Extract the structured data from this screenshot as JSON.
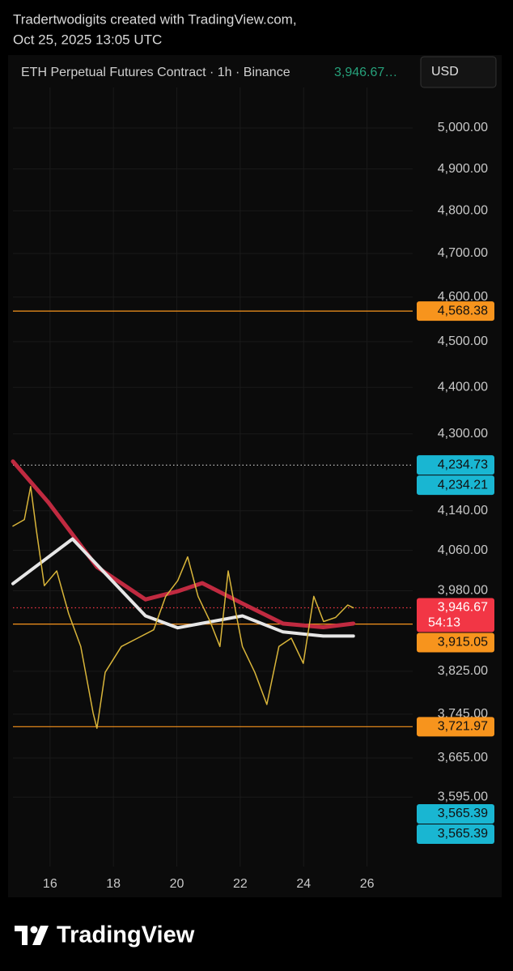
{
  "header": {
    "line1": "Tradertwodigits created with TradingView.com,",
    "line2": "Oct 25, 2025 13:05 UTC"
  },
  "chart_data": {
    "type": "line",
    "title": "ETH Perpetual Futures Contract · 1h · Binance",
    "last_price_label": "3,946.67…",
    "currency": "USD",
    "log_scale": true,
    "grid": true,
    "xlim": [
      14.83,
      27.44
    ],
    "xticks": [
      16,
      18,
      20,
      22,
      24,
      26
    ],
    "ylim": [
      3474,
      5183
    ],
    "yticks": [
      {
        "value": 5000,
        "label": "5,000.00"
      },
      {
        "value": 4900,
        "label": "4,900.00"
      },
      {
        "value": 4800,
        "label": "4,800.00"
      },
      {
        "value": 4700,
        "label": "4,700.00"
      },
      {
        "value": 4600,
        "label": "4,600.00"
      },
      {
        "value": 4500,
        "label": "4,500.00"
      },
      {
        "value": 4400,
        "label": "4,400.00"
      },
      {
        "value": 4300,
        "label": "4,300.00"
      },
      {
        "value": 4140,
        "label": "4,140.00"
      },
      {
        "value": 4060,
        "label": "4,060.00"
      },
      {
        "value": 3980,
        "label": "3,980.00"
      },
      {
        "value": 3825,
        "label": "3,825.00"
      },
      {
        "value": 3745,
        "label": "3,745.00"
      },
      {
        "value": 3665,
        "label": "3,665.00"
      },
      {
        "value": 3595,
        "label": "3,595.00"
      }
    ],
    "series": [
      {
        "color": "#c02a40",
        "width": 5,
        "x": [
          14.83,
          15.95,
          17.48,
          19.01,
          20.03,
          20.8,
          22.07,
          23.35,
          24.62,
          25.57
        ],
        "values": [
          4242,
          4157,
          4027,
          3963,
          3979,
          3995,
          3955,
          3916,
          3909,
          3916
        ]
      },
      {
        "color": "#e6e6e6",
        "width": 4,
        "x": [
          14.83,
          16.71,
          19.01,
          20.03,
          22.07,
          23.35,
          24.62,
          25.57
        ],
        "values": [
          3994,
          4083,
          3931,
          3908,
          3931,
          3900,
          3892,
          3892
        ]
      },
      {
        "color": "#d9b53a",
        "width": 1.5,
        "x": [
          14.83,
          15.19,
          15.39,
          15.57,
          15.82,
          16.21,
          16.59,
          16.97,
          17.36,
          17.48,
          17.74,
          18.25,
          18.76,
          19.27,
          19.65,
          20.03,
          20.34,
          20.67,
          21.05,
          21.36,
          21.62,
          21.87,
          22.07,
          22.46,
          22.84,
          23.22,
          23.61,
          23.99,
          24.32,
          24.63,
          25.01,
          25.39,
          25.57
        ],
        "values": [
          4109,
          4122,
          4190,
          4100,
          3990,
          4019,
          3935,
          3872,
          3747,
          3719,
          3823,
          3872,
          3888,
          3904,
          3969,
          4000,
          4047,
          3969,
          3920,
          3872,
          4019,
          3935,
          3872,
          3823,
          3763,
          3872,
          3888,
          3840,
          3969,
          3920,
          3928,
          3952,
          3946.67
        ]
      }
    ],
    "levels": [
      {
        "value": 4568.38,
        "label": "4,568.38",
        "color": "#f7941d",
        "line": "solid"
      },
      {
        "value": 4234.73,
        "label": "4,234.73",
        "color": "#19b6d2",
        "line": "none"
      },
      {
        "value": 4234.21,
        "label": "4,234.21",
        "color": "#19b6d2",
        "line": "dotted"
      },
      {
        "value": 3946.67,
        "label": "3,946.67",
        "sublabel": "54:13",
        "color": "#f23645",
        "line": "dotted"
      },
      {
        "value": 3915.05,
        "label": "3,915.05",
        "color": "#f7941d",
        "line": "solid"
      },
      {
        "value": 3721.97,
        "label": "3,721.97",
        "color": "#f7941d",
        "line": "solid"
      },
      {
        "value": 3565.39,
        "label": "3,565.39",
        "color": "#19b6d2",
        "line": "none"
      },
      {
        "value": 3565.39,
        "label": "3,565.39",
        "color": "#19b6d2",
        "line": "none"
      }
    ]
  },
  "brand": "TradingView"
}
